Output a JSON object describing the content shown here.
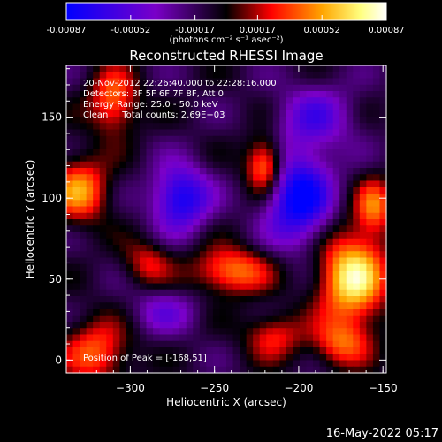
{
  "chart_data": {
    "type": "heatmap",
    "title": "Reconstructed RHESSI Image",
    "xlabel": "Heliocentric X (arcsec)",
    "ylabel": "Heliocentric Y (arcsec)",
    "xlim": [
      -338,
      -148
    ],
    "ylim": [
      -8,
      182
    ],
    "x_ticks": [
      -300,
      -250,
      -200,
      -150
    ],
    "y_ticks": [
      0,
      50,
      100,
      150
    ],
    "colorbar": {
      "range": [
        -0.00087,
        0.00087
      ],
      "tick_values": [
        -0.00087,
        -0.00052,
        -0.00017,
        0.00017,
        0.00052,
        0.00087
      ],
      "tick_labels": [
        "-0.00087",
        "-0.00052",
        "-0.00017",
        "0.00017",
        "0.00052",
        "0.00087"
      ],
      "unit_label": "(photons cm⁻² s⁻¹ asec⁻²)",
      "stops": [
        "#0000ff",
        "#7a00c8",
        "#000000",
        "#ff0000",
        "#ffa500",
        "#ffff80",
        "#ffffff"
      ]
    },
    "annotations": [
      "20-Nov-2012 22:26:40.000 to 22:28:16.000",
      "Detectors: 3F 5F 6F 7F 8F, Att 0",
      "Energy Range: 25.0 - 50.0 keV",
      "Clean     Total counts: 2.69E+03"
    ],
    "peak_label": "Position of Peak = [-168,51]",
    "peak": [
      -168,
      51
    ],
    "sources": [
      {
        "x": -168,
        "y": 51,
        "amp": 0.00087,
        "sx": 14,
        "sy": 20
      },
      {
        "x": -220,
        "y": 120,
        "amp": 0.0007,
        "sx": 8,
        "sy": 12
      },
      {
        "x": -310,
        "y": 160,
        "amp": 0.00055,
        "sx": 10,
        "sy": 14
      },
      {
        "x": -330,
        "y": 105,
        "amp": 0.0006,
        "sx": 12,
        "sy": 14
      },
      {
        "x": -240,
        "y": 55,
        "amp": 0.00058,
        "sx": 16,
        "sy": 10
      },
      {
        "x": -320,
        "y": 5,
        "amp": 0.0005,
        "sx": 14,
        "sy": 14
      },
      {
        "x": -175,
        "y": 10,
        "amp": 0.00045,
        "sx": 12,
        "sy": 10
      },
      {
        "x": -155,
        "y": 95,
        "amp": 0.0005,
        "sx": 8,
        "sy": 12
      },
      {
        "x": -215,
        "y": 15,
        "amp": 0.0004,
        "sx": 12,
        "sy": 10
      },
      {
        "x": -290,
        "y": 60,
        "amp": 0.00035,
        "sx": 10,
        "sy": 10
      },
      {
        "x": -270,
        "y": 100,
        "amp": -0.0007,
        "sx": 12,
        "sy": 14
      },
      {
        "x": -200,
        "y": 100,
        "amp": -0.0008,
        "sx": 14,
        "sy": 20
      },
      {
        "x": -190,
        "y": 150,
        "amp": -0.0004,
        "sx": 16,
        "sy": 14
      },
      {
        "x": -280,
        "y": 30,
        "amp": -0.0003,
        "sx": 14,
        "sy": 10
      }
    ]
  },
  "footer_date": "16-May-2022 05:17"
}
